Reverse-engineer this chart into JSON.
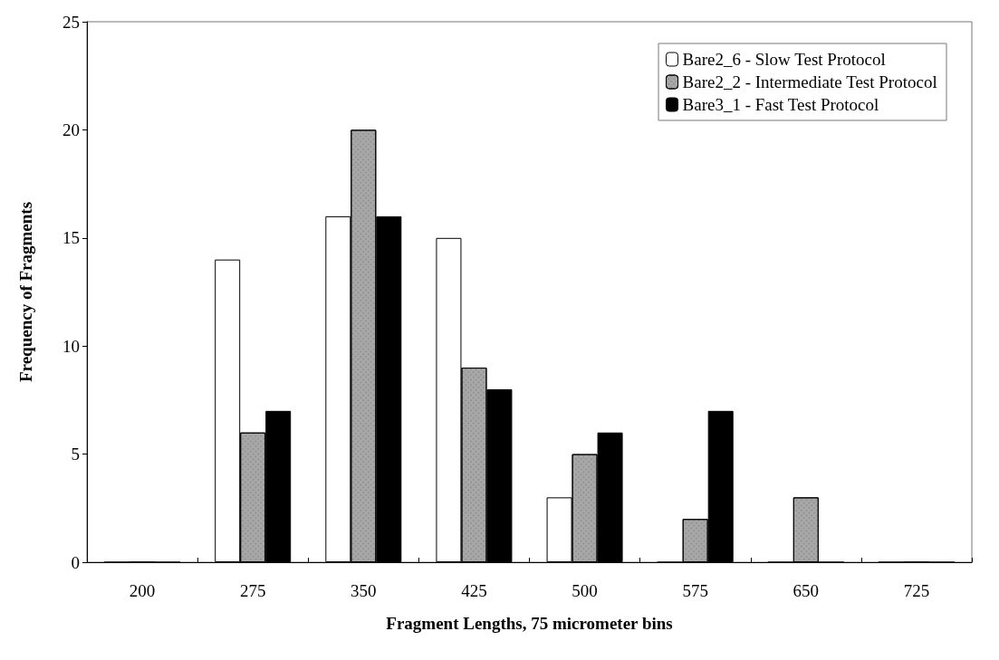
{
  "chart_data": {
    "type": "bar",
    "xlabel": "Fragment Lengths, 75 micrometer bins",
    "ylabel": "Frequency of Fragments",
    "categories": [
      "200",
      "275",
      "350",
      "425",
      "500",
      "575",
      "650",
      "725"
    ],
    "series": [
      {
        "name": "Bare2_6 - Slow Test Protocol",
        "color": "#ffffff",
        "values": [
          0,
          14,
          16,
          15,
          3,
          0,
          0,
          0
        ]
      },
      {
        "name": "Bare2_2 - Intermediate Test Protocol",
        "color": "#a8a8a8",
        "values": [
          0,
          6,
          20,
          9,
          5,
          2,
          3,
          0
        ]
      },
      {
        "name": "Bare3_1 - Fast Test Protocol",
        "color": "#000000",
        "values": [
          0,
          7,
          16,
          8,
          6,
          7,
          0,
          0
        ]
      }
    ],
    "ylim": [
      0,
      25
    ],
    "yticks": [
      0,
      5,
      10,
      15,
      20,
      25
    ],
    "grid": false,
    "legend": "top right"
  }
}
